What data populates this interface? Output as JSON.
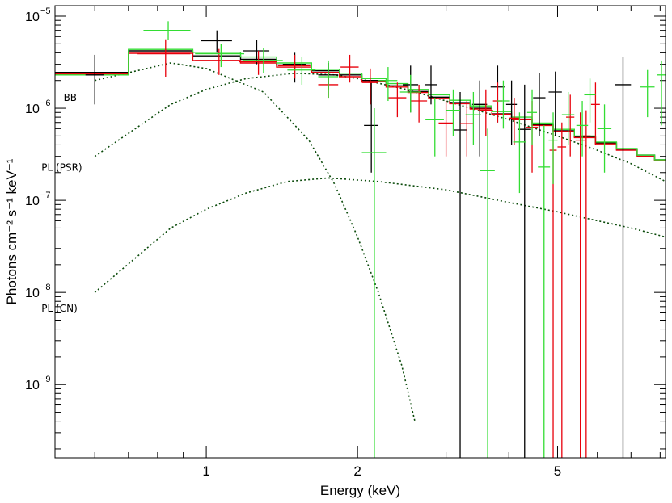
{
  "chart_data": {
    "type": "scatter",
    "title": "",
    "xlabel": "Energy (keV)",
    "ylabel": "Photons cm⁻² s⁻¹ keV⁻¹",
    "x_scale": "log",
    "y_scale": "log",
    "xlim": [
      0.5,
      8.2
    ],
    "ylim": [
      1.6e-10,
      1.3e-05
    ],
    "grid": false,
    "x_ticks": [
      {
        "value": 1,
        "label": "1"
      },
      {
        "value": 2,
        "label": "2"
      },
      {
        "value": 5,
        "label": "5"
      }
    ],
    "y_ticks": [
      {
        "value": 1e-05,
        "base": "10",
        "exp": "−5"
      },
      {
        "value": 1e-06,
        "base": "10",
        "exp": "−6"
      },
      {
        "value": 1e-07,
        "base": "10",
        "exp": "−7"
      },
      {
        "value": 1e-08,
        "base": "10",
        "exp": "−8"
      },
      {
        "value": 1e-09,
        "base": "10",
        "exp": "−9"
      }
    ],
    "annotations": [
      {
        "text": "BB",
        "x": 0.52,
        "y": 1.2e-06
      },
      {
        "text": "PL (PSR)",
        "x": 0.47,
        "y": 2.1e-07
      },
      {
        "text": "PL (CN)",
        "x": 0.47,
        "y": 6.2e-09
      }
    ],
    "colors": {
      "black": "#000000",
      "red": "#e8000b",
      "green": "#33dd33",
      "model_dash": "#0a4a0a"
    },
    "series": [
      {
        "color": "black",
        "points": [
          [
            0.6,
            0.025,
            2.3e-06,
            1.1e-06,
            3.8e-06
          ],
          [
            1.05,
            0.075,
            5.4e-06,
            4e-06,
            7e-06
          ],
          [
            1.26,
            0.075,
            4.2e-06,
            3e-06,
            5.5e-06
          ],
          [
            1.5,
            0.08,
            3e-06,
            1.9e-06,
            4e-06
          ],
          [
            1.75,
            0.08,
            2.3e-06,
            1.6e-06,
            3.1e-06
          ],
          [
            2.13,
            0.07,
            6.5e-07,
            2e-07,
            1.9e-06
          ],
          [
            2.55,
            0.09,
            1.8e-06,
            9e-07,
            2.9e-06
          ],
          [
            2.8,
            0.08,
            1.8e-06,
            1.1e-06,
            2.9e-06
          ],
          [
            3.2,
            0.1,
            5.8e-07,
            1e-10,
            1.5e-06
          ],
          [
            3.5,
            0.12,
            1.1e-06,
            3e-07,
            2e-06
          ],
          [
            3.8,
            0.12,
            1.7e-06,
            7e-07,
            2.9e-06
          ],
          [
            4.05,
            0.1,
            1.1e-06,
            4e-07,
            2e-06
          ],
          [
            4.3,
            0.13,
            5.9e-07,
            1e-10,
            1.8e-06
          ],
          [
            4.6,
            0.13,
            1.3e-06,
            5e-07,
            2.4e-06
          ],
          [
            4.95,
            0.15,
            1.5e-06,
            5e-07,
            2.5e-06
          ],
          [
            6.75,
            0.25,
            1.8e-06,
            1e-10,
            3.6e-06
          ]
        ]
      },
      {
        "color": "red",
        "points": [
          [
            0.83,
            0.1,
            3.9e-06,
            2.2e-06,
            5.6e-06
          ],
          [
            1.06,
            0.11,
            3.3e-06,
            2.3e-06,
            4.4e-06
          ],
          [
            1.27,
            0.11,
            3.2e-06,
            2.3e-06,
            4.2e-06
          ],
          [
            1.5,
            0.11,
            2.9e-06,
            2.1e-06,
            3.8e-06
          ],
          [
            1.75,
            0.08,
            1.8e-06,
            1.3e-06,
            2.5e-06
          ],
          [
            1.93,
            0.08,
            2.8e-06,
            1.9e-06,
            3.8e-06
          ],
          [
            2.12,
            0.08,
            1.9e-06,
            1.1e-06,
            2.7e-06
          ],
          [
            2.4,
            0.1,
            1.3e-06,
            8e-07,
            1.9e-06
          ],
          [
            2.65,
            0.1,
            1.2e-06,
            7e-07,
            1.8e-06
          ],
          [
            3.0,
            0.1,
            6.9e-07,
            3e-07,
            1.2e-06
          ],
          [
            3.3,
            0.1,
            6.8e-07,
            3e-07,
            1.2e-06
          ],
          [
            3.6,
            0.12,
            9.5e-07,
            5e-07,
            1.6e-06
          ],
          [
            3.8,
            0.08,
            1.2e-06,
            7e-07,
            1.9e-06
          ],
          [
            4.1,
            0.1,
            7.8e-07,
            4e-07,
            1.3e-06
          ],
          [
            4.45,
            0.12,
            6.2e-07,
            2e-07,
            1.2e-06
          ],
          [
            4.9,
            0.08,
            3.5e-07,
            1e-10,
            6.5e-07
          ],
          [
            5.1,
            0.1,
            3.8e-07,
            1e-10,
            7e-07
          ],
          [
            5.3,
            0.1,
            8e-07,
            3e-07,
            1.4e-06
          ],
          [
            5.55,
            0.12,
            4.5e-07,
            1e-10,
            9e-07
          ],
          [
            5.7,
            0.12,
            5e-07,
            1e-10,
            9.5e-07
          ],
          [
            5.95,
            0.12,
            1.1e-06,
            4e-07,
            1.9e-06
          ]
        ]
      },
      {
        "color": "green",
        "points": [
          [
            0.84,
            0.09,
            7e-06,
            5.5e-06,
            8.8e-06
          ],
          [
            1.07,
            0.12,
            3.9e-06,
            2.8e-06,
            5e-06
          ],
          [
            1.3,
            0.12,
            3.3e-06,
            2.4e-06,
            4.5e-06
          ],
          [
            1.55,
            0.1,
            2.6e-06,
            1.8e-06,
            3.6e-06
          ],
          [
            1.75,
            0.08,
            2.2e-06,
            1.3e-06,
            3.3e-06
          ],
          [
            2.16,
            0.12,
            3.3e-07,
            1e-10,
            1e-06
          ],
          [
            2.3,
            0.1,
            2e-06,
            1.2e-06,
            2.8e-06
          ],
          [
            2.55,
            0.12,
            1.5e-06,
            9e-07,
            2.3e-06
          ],
          [
            2.85,
            0.12,
            7.5e-07,
            3e-07,
            1.3e-06
          ],
          [
            3.1,
            0.1,
            9.5e-07,
            5e-07,
            1.6e-06
          ],
          [
            3.4,
            0.12,
            8.5e-07,
            4e-07,
            1.5e-06
          ],
          [
            3.63,
            0.12,
            2.1e-07,
            1e-10,
            6e-07
          ],
          [
            3.9,
            0.12,
            1.2e-06,
            6e-07,
            2e-06
          ],
          [
            4.2,
            0.12,
            4.3e-07,
            1.2e-07,
            9e-07
          ],
          [
            4.45,
            0.1,
            9e-07,
            4e-07,
            1.6e-06
          ],
          [
            4.7,
            0.13,
            2.3e-07,
            1e-10,
            6.5e-07
          ],
          [
            4.9,
            0.1,
            4.5e-07,
            1.5e-07,
            9e-07
          ],
          [
            5.25,
            0.15,
            8.5e-07,
            4e-07,
            1.5e-06
          ],
          [
            5.6,
            0.15,
            6.5e-07,
            3e-07,
            1.2e-06
          ],
          [
            5.8,
            0.15,
            1.4e-06,
            7e-07,
            2.1e-06
          ],
          [
            6.2,
            0.2,
            6e-07,
            2e-07,
            1.1e-06
          ],
          [
            7.55,
            0.25,
            1.7e-06,
            8e-07,
            2.6e-06
          ],
          [
            8.05,
            0.15,
            2.3e-06,
            6.5e-07,
            3.3e-06
          ]
        ]
      }
    ],
    "model_steps": [
      {
        "color": "black",
        "bins": [
          [
            0.5,
            0.7,
            2.45e-06
          ],
          [
            0.7,
            0.94,
            4.2e-06
          ],
          [
            0.94,
            1.17,
            3.7e-06
          ],
          [
            1.17,
            1.38,
            3.4e-06
          ],
          [
            1.38,
            1.62,
            2.95e-06
          ],
          [
            1.62,
            1.84,
            2.55e-06
          ],
          [
            1.84,
            2.04,
            2.3e-06
          ],
          [
            2.04,
            2.28,
            2e-06
          ],
          [
            2.28,
            2.52,
            1.75e-06
          ],
          [
            2.52,
            2.77,
            1.52e-06
          ],
          [
            2.77,
            3.05,
            1.32e-06
          ],
          [
            3.05,
            3.35,
            1.15e-06
          ],
          [
            3.35,
            3.7,
            1e-06
          ],
          [
            3.7,
            4.05,
            8.7e-07
          ],
          [
            4.05,
            4.45,
            7.6e-07
          ],
          [
            4.45,
            4.9,
            6.6e-07
          ],
          [
            4.9,
            5.4,
            5.7e-07
          ],
          [
            5.4,
            5.95,
            4.9e-07
          ],
          [
            5.95,
            6.55,
            4.2e-07
          ],
          [
            6.55,
            7.2,
            3.6e-07
          ],
          [
            7.2,
            7.8,
            3.1e-07
          ],
          [
            7.8,
            8.2,
            2.75e-07
          ]
        ]
      },
      {
        "color": "red",
        "bins": [
          [
            0.5,
            0.7,
            2.35e-06
          ],
          [
            0.7,
            0.94,
            3.95e-06
          ],
          [
            0.94,
            1.17,
            3.3e-06
          ],
          [
            1.17,
            1.38,
            3.1e-06
          ],
          [
            1.38,
            1.62,
            2.8e-06
          ],
          [
            1.62,
            1.84,
            2.45e-06
          ],
          [
            1.84,
            2.04,
            2.2e-06
          ],
          [
            2.04,
            2.28,
            1.95e-06
          ],
          [
            2.28,
            2.52,
            1.7e-06
          ],
          [
            2.52,
            2.77,
            1.48e-06
          ],
          [
            2.77,
            3.05,
            1.28e-06
          ],
          [
            3.05,
            3.35,
            1.12e-06
          ],
          [
            3.35,
            3.7,
            9.8e-07
          ],
          [
            3.7,
            4.05,
            8.6e-07
          ],
          [
            4.05,
            4.45,
            7.5e-07
          ],
          [
            4.45,
            4.9,
            6.5e-07
          ],
          [
            4.9,
            5.4,
            5.6e-07
          ],
          [
            5.4,
            5.95,
            4.8e-07
          ],
          [
            5.95,
            6.55,
            4.1e-07
          ],
          [
            6.55,
            7.2,
            3.5e-07
          ],
          [
            7.2,
            7.8,
            3e-07
          ],
          [
            7.8,
            8.2,
            2.7e-07
          ]
        ]
      },
      {
        "color": "green",
        "bins": [
          [
            0.5,
            0.7,
            2.3e-06
          ],
          [
            0.7,
            0.94,
            4.35e-06
          ],
          [
            0.94,
            1.17,
            4.05e-06
          ],
          [
            1.17,
            1.38,
            3.6e-06
          ],
          [
            1.38,
            1.62,
            3.1e-06
          ],
          [
            1.62,
            1.84,
            2.65e-06
          ],
          [
            1.84,
            2.04,
            2.4e-06
          ],
          [
            2.04,
            2.28,
            2.1e-06
          ],
          [
            2.28,
            2.52,
            1.85e-06
          ],
          [
            2.52,
            2.77,
            1.6e-06
          ],
          [
            2.77,
            3.05,
            1.4e-06
          ],
          [
            3.05,
            3.35,
            1.22e-06
          ],
          [
            3.35,
            3.7,
            1.06e-06
          ],
          [
            3.7,
            4.05,
            9.2e-07
          ],
          [
            4.05,
            4.45,
            8e-07
          ],
          [
            4.45,
            4.9,
            6.9e-07
          ],
          [
            4.9,
            5.4,
            5.9e-07
          ],
          [
            5.4,
            5.95,
            5e-07
          ],
          [
            5.95,
            6.55,
            4.3e-07
          ],
          [
            6.55,
            7.2,
            3.65e-07
          ],
          [
            7.2,
            7.8,
            3.1e-07
          ],
          [
            7.8,
            8.2,
            2.75e-07
          ]
        ]
      }
    ],
    "model_components": [
      {
        "label": "BB",
        "points": [
          [
            0.6,
            2e-06
          ],
          [
            0.85,
            3.1e-06
          ],
          [
            1.0,
            2.7e-06
          ],
          [
            1.3,
            1.5e-06
          ],
          [
            1.6,
            4.5e-07
          ],
          [
            1.8,
            1.5e-07
          ],
          [
            2.0,
            4e-08
          ],
          [
            2.2,
            1e-08
          ],
          [
            2.45,
            1.6e-09
          ],
          [
            2.6,
            4e-10
          ]
        ]
      },
      {
        "label": "PL (PSR)",
        "points": [
          [
            0.6,
            3e-07
          ],
          [
            0.85,
            1.1e-06
          ],
          [
            1.0,
            1.6e-06
          ],
          [
            1.2,
            2.1e-06
          ],
          [
            1.5,
            2.4e-06
          ],
          [
            1.8,
            2.3e-06
          ],
          [
            2.0,
            2.1e-06
          ],
          [
            2.5,
            1.6e-06
          ],
          [
            3.0,
            1.2e-06
          ],
          [
            4.0,
            7.5e-07
          ],
          [
            5.0,
            5e-07
          ],
          [
            6.0,
            3.5e-07
          ],
          [
            7.0,
            2.5e-07
          ],
          [
            8.2,
            1.6e-07
          ]
        ]
      },
      {
        "label": "PL (CN)",
        "points": [
          [
            0.6,
            1e-08
          ],
          [
            0.85,
            5e-08
          ],
          [
            1.0,
            8e-08
          ],
          [
            1.2,
            1.2e-07
          ],
          [
            1.45,
            1.6e-07
          ],
          [
            1.75,
            1.75e-07
          ],
          [
            2.2,
            1.6e-07
          ],
          [
            3.0,
            1.3e-07
          ],
          [
            4.0,
            9.5e-08
          ],
          [
            5.0,
            7.5e-08
          ],
          [
            6.0,
            6e-08
          ],
          [
            7.0,
            5e-08
          ],
          [
            8.2,
            4e-08
          ]
        ]
      }
    ]
  }
}
